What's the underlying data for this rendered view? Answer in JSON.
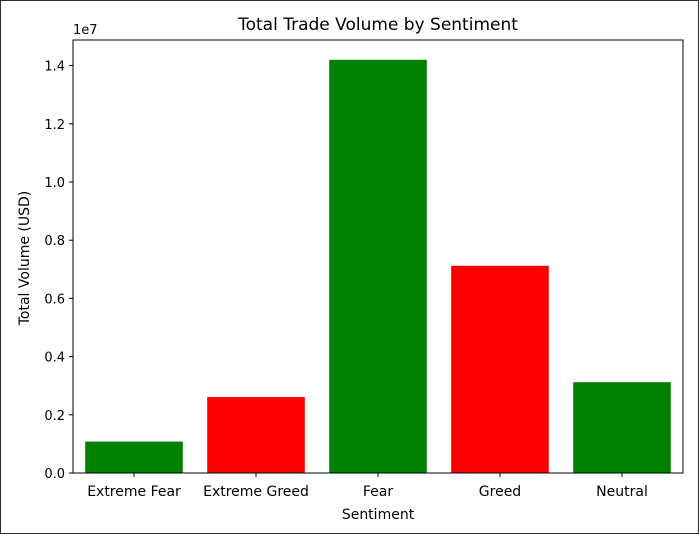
{
  "chart_data": {
    "type": "bar",
    "title": "Total Trade Volume by Sentiment",
    "xlabel": "Sentiment",
    "ylabel": "Total Volume (USD)",
    "offset_label": "1e7",
    "categories": [
      "Extreme Fear",
      "Extreme Greed",
      "Fear",
      "Greed",
      "Neutral"
    ],
    "values": [
      1080000,
      2610000,
      14200000,
      7120000,
      3120000
    ],
    "bar_colors": [
      "#008000",
      "#ff0000",
      "#008000",
      "#ff0000",
      "#008000"
    ],
    "ylim": [
      0,
      14880000
    ],
    "yticks": [
      0,
      2000000,
      4000000,
      6000000,
      8000000,
      10000000,
      12000000,
      14000000
    ],
    "ytick_labels": [
      "0.0",
      "0.2",
      "0.4",
      "0.6",
      "0.8",
      "1.0",
      "1.2",
      "1.4"
    ],
    "grid": false,
    "legend": "none"
  }
}
